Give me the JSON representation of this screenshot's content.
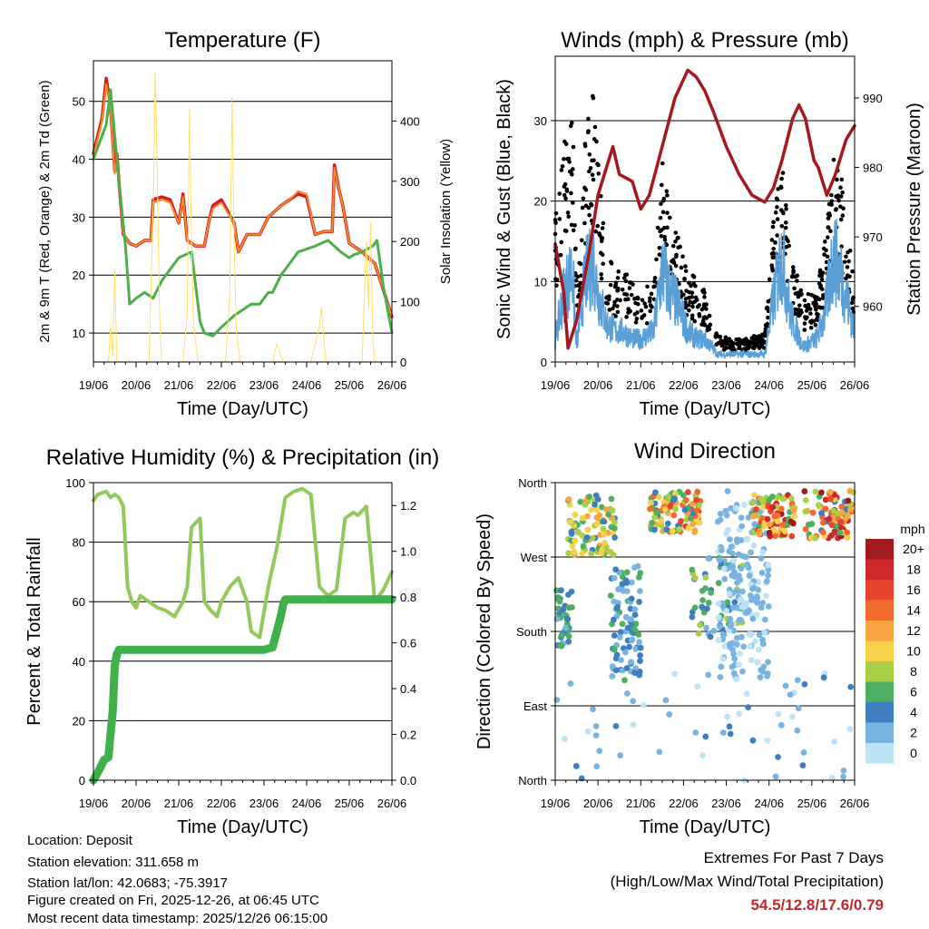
{
  "colors": {
    "temp_2m": "#d7191c",
    "temp_9m": "#f08c2b",
    "dewpoint": "#4daf4a",
    "insolation": "#ffe066",
    "gust": "#000000",
    "wind": "#5aa0d8",
    "pressure": "#a5191e",
    "humidity": "#92c95a",
    "precip": "#3fb04a",
    "grid": "#000000",
    "extremes_text": "#c0272d"
  },
  "chart_data": [
    {
      "id": "temperature",
      "type": "line",
      "title": "Temperature (F)",
      "xlabel": "Time (Day/UTC)",
      "ylabel": "2m & 9m T (Red, Orange) & 2m Td (Green)",
      "y2label": "Solar Insolation (Yellow)",
      "xticks": [
        "19/06",
        "20/06",
        "21/06",
        "22/06",
        "23/06",
        "24/06",
        "25/06",
        "26/06"
      ],
      "xlim": [
        0,
        7
      ],
      "ylim": [
        5,
        57
      ],
      "yticks": [
        10,
        20,
        30,
        40,
        50
      ],
      "y2lim": [
        0,
        500
      ],
      "y2ticks": [
        0,
        100,
        200,
        300,
        400
      ],
      "series": [
        {
          "name": "2m T",
          "axis": "left",
          "x": [
            0,
            0.2,
            0.3,
            0.4,
            0.5,
            0.55,
            0.6,
            0.7,
            0.85,
            1.0,
            1.2,
            1.35,
            1.4,
            1.6,
            1.8,
            2.0,
            2.1,
            2.2,
            2.4,
            2.6,
            2.7,
            2.8,
            3.0,
            3.3,
            3.4,
            3.6,
            3.9,
            4.1,
            4.25,
            4.4,
            4.6,
            4.8,
            5.0,
            5.2,
            5.4,
            5.6,
            5.65,
            5.75,
            5.85,
            6.0,
            6.3,
            6.6,
            7.0
          ],
          "y": [
            41,
            47,
            54,
            49,
            38,
            41,
            36,
            27,
            25.5,
            25,
            26,
            26,
            33,
            33.5,
            33,
            29,
            34,
            26,
            25,
            25,
            29,
            32,
            33,
            29,
            24,
            27,
            27,
            30,
            31,
            32,
            33,
            34,
            33.5,
            27,
            27.5,
            27.5,
            39,
            35,
            32,
            25.5,
            24,
            22,
            12.8
          ]
        },
        {
          "name": "9m T",
          "axis": "left",
          "x": [
            0,
            0.2,
            0.3,
            0.4,
            0.5,
            0.55,
            0.6,
            0.7,
            0.85,
            1.0,
            1.2,
            1.35,
            1.4,
            1.6,
            1.8,
            2.0,
            2.1,
            2.2,
            2.4,
            2.6,
            2.7,
            2.8,
            3.0,
            3.3,
            3.4,
            3.6,
            3.9,
            4.1,
            4.25,
            4.4,
            4.6,
            4.8,
            5.0,
            5.2,
            5.4,
            5.6,
            5.65,
            5.75,
            5.85,
            6.0,
            6.3,
            6.6,
            7.0
          ],
          "y": [
            40.5,
            46.5,
            53,
            48.5,
            37.5,
            40,
            35.5,
            27,
            25.5,
            25,
            26,
            26,
            32.5,
            33,
            32.5,
            29,
            33.5,
            26,
            25,
            25,
            29,
            31.5,
            32.5,
            29,
            24,
            27,
            27,
            30,
            31,
            32,
            33,
            34.5,
            34,
            27,
            27.5,
            27.5,
            38.5,
            35,
            32,
            25.5,
            24,
            22,
            12.8
          ]
        },
        {
          "name": "2m Td",
          "axis": "left",
          "x": [
            0,
            0.3,
            0.4,
            0.5,
            0.6,
            0.75,
            0.85,
            1.0,
            1.2,
            1.4,
            1.6,
            1.8,
            2.0,
            2.3,
            2.5,
            2.6,
            2.8,
            3.0,
            3.3,
            3.5,
            3.7,
            3.9,
            4.1,
            4.2,
            4.4,
            4.6,
            4.8,
            5.2,
            5.5,
            5.8,
            6.0,
            6.1,
            6.3,
            6.55,
            6.65,
            6.8,
            7.0
          ],
          "y": [
            40,
            46,
            52,
            44,
            36,
            25,
            15,
            16,
            17,
            16,
            19,
            21,
            23,
            24,
            12,
            10,
            9.5,
            11,
            13,
            14,
            15,
            15,
            17,
            17,
            20,
            22,
            24,
            25,
            26,
            24,
            23,
            23.5,
            24,
            25,
            26,
            18,
            10
          ]
        },
        {
          "name": "Solar Insolation",
          "axis": "right",
          "x": [
            0,
            0.35,
            0.4,
            0.45,
            0.5,
            0.55,
            1.3,
            1.4,
            1.45,
            1.5,
            1.55,
            1.6,
            1.7,
            2.1,
            2.2,
            2.25,
            2.3,
            2.35,
            2.45,
            3.1,
            3.2,
            3.25,
            3.3,
            3.35,
            3.45,
            4.2,
            4.3,
            4.35,
            4.45,
            5.1,
            5.3,
            5.35,
            5.4,
            5.45,
            6.3,
            6.4,
            6.45,
            6.5,
            6.55,
            6.6,
            7.0
          ],
          "y": [
            0,
            0,
            60,
            10,
            150,
            0,
            0,
            250,
            480,
            300,
            80,
            0,
            0,
            0,
            80,
            420,
            200,
            60,
            0,
            0,
            120,
            440,
            200,
            50,
            0,
            0,
            30,
            20,
            0,
            0,
            60,
            90,
            40,
            0,
            0,
            200,
            90,
            230,
            40,
            0,
            0
          ]
        }
      ]
    },
    {
      "id": "winds",
      "type": "line",
      "title": "Winds (mph) & Pressure (mb)",
      "xlabel": "Time (Day/UTC)",
      "ylabel": "Sonic Wind & Gust (Blue, Black)",
      "y2label": "Station Pressure (Maroon)",
      "xticks": [
        "19/06",
        "20/06",
        "21/06",
        "22/06",
        "23/06",
        "24/06",
        "25/06",
        "26/06"
      ],
      "xlim": [
        0,
        7
      ],
      "ylim": [
        0,
        38
      ],
      "yticks": [
        0,
        10,
        20,
        30
      ],
      "y2lim": [
        952,
        996
      ],
      "y2ticks": [
        960,
        970,
        980,
        990
      ],
      "series": [
        {
          "name": "Gust",
          "axis": "left",
          "x": [
            0,
            0.2,
            0.4,
            0.5,
            0.7,
            0.9,
            1.0,
            1.2,
            1.4,
            1.6,
            1.8,
            2.0,
            2.3,
            2.5,
            2.7,
            2.9,
            3.1,
            3.3,
            3.5,
            3.8,
            4.1,
            4.4,
            4.7,
            4.9,
            5.1,
            5.3,
            5.5,
            5.8,
            6.1,
            6.3,
            6.5,
            6.7,
            7.0
          ],
          "y": [
            16,
            24,
            30,
            8,
            26,
            30,
            22,
            12,
            10,
            10,
            9,
            8,
            9,
            22,
            17,
            13,
            10,
            9,
            8,
            3,
            2.5,
            2.5,
            3,
            3,
            16,
            22,
            12,
            7,
            8,
            13,
            22,
            20,
            8
          ]
        },
        {
          "name": "Wind",
          "axis": "left",
          "x": [
            0,
            0.2,
            0.4,
            0.5,
            0.7,
            0.9,
            1.0,
            1.2,
            1.4,
            1.6,
            1.8,
            2.0,
            2.3,
            2.5,
            2.7,
            2.9,
            3.1,
            3.3,
            3.5,
            3.8,
            4.1,
            4.4,
            4.7,
            4.9,
            5.1,
            5.3,
            5.5,
            5.8,
            6.1,
            6.3,
            6.5,
            6.7,
            7.0
          ],
          "y": [
            3,
            9,
            12,
            2,
            11,
            13,
            9,
            5,
            4,
            4,
            3,
            3,
            4,
            12,
            9,
            7,
            4,
            3,
            3,
            1,
            1,
            1,
            1,
            1,
            8,
            14,
            6,
            2,
            3,
            6,
            14,
            11,
            4
          ]
        },
        {
          "name": "Pressure",
          "axis": "right",
          "x": [
            0,
            0.2,
            0.3,
            0.5,
            0.8,
            1.0,
            1.25,
            1.35,
            1.5,
            1.8,
            2.0,
            2.2,
            2.5,
            2.8,
            3.1,
            3.3,
            3.5,
            3.7,
            4.0,
            4.3,
            4.6,
            4.9,
            5.1,
            5.3,
            5.55,
            5.7,
            5.85,
            6.05,
            6.15,
            6.35,
            6.55,
            6.8,
            7.0
          ],
          "y": [
            969,
            962,
            954,
            958,
            968,
            976,
            981,
            983,
            979,
            978,
            974,
            976,
            983,
            990,
            994,
            993,
            991,
            988,
            983,
            979,
            976,
            975,
            977,
            981,
            987,
            989,
            987,
            981,
            980,
            976,
            979,
            984,
            986
          ]
        }
      ]
    },
    {
      "id": "humidity",
      "type": "line",
      "title": "Relative Humidity (%) & Precipitation (in)",
      "xlabel": "Time (Day/UTC)",
      "ylabel": "Percent & Total Rainfall",
      "xticks": [
        "19/06",
        "20/06",
        "21/06",
        "22/06",
        "23/06",
        "24/06",
        "25/06",
        "26/06"
      ],
      "xlim": [
        0,
        7
      ],
      "ylim": [
        0,
        100
      ],
      "yticks": [
        0,
        20,
        40,
        60,
        80,
        100
      ],
      "y2lim": [
        0,
        1.3
      ],
      "y2ticks": [
        0.0,
        0.2,
        0.4,
        0.6,
        0.8,
        1.0,
        1.2
      ],
      "series": [
        {
          "name": "Relative Humidity",
          "axis": "left",
          "x": [
            0,
            0.1,
            0.3,
            0.4,
            0.5,
            0.6,
            0.7,
            0.8,
            0.9,
            1.0,
            1.1,
            1.3,
            1.5,
            1.7,
            1.9,
            2.1,
            2.2,
            2.3,
            2.5,
            2.6,
            2.75,
            2.9,
            3.0,
            3.2,
            3.4,
            3.6,
            3.7,
            3.9,
            4.1,
            4.3,
            4.5,
            4.7,
            4.9,
            5.1,
            5.3,
            5.5,
            5.7,
            5.9,
            6.1,
            6.2,
            6.4,
            6.6,
            6.8,
            7.0
          ],
          "y": [
            94,
            96,
            97,
            95,
            96,
            95,
            92,
            65,
            60,
            58,
            62,
            60,
            58,
            57,
            55,
            60,
            65,
            85,
            88,
            60,
            57,
            55,
            60,
            65,
            68,
            60,
            50,
            48,
            65,
            78,
            95,
            97,
            98,
            96,
            65,
            62,
            64,
            88,
            90,
            89,
            92,
            60,
            64,
            70
          ]
        },
        {
          "name": "Total Rainfall",
          "axis": "right",
          "x": [
            0,
            0.15,
            0.25,
            0.35,
            0.4,
            0.45,
            0.5,
            0.55,
            0.6,
            0.65,
            1.0,
            2.0,
            3.0,
            4.0,
            4.2,
            4.3,
            4.4,
            4.45,
            4.5,
            4.6,
            5.0,
            6.0,
            7.0
          ],
          "y": [
            0.0,
            0.05,
            0.09,
            0.1,
            0.2,
            0.3,
            0.5,
            0.55,
            0.57,
            0.57,
            0.57,
            0.57,
            0.57,
            0.57,
            0.58,
            0.65,
            0.72,
            0.77,
            0.79,
            0.79,
            0.79,
            0.79,
            0.79
          ]
        }
      ]
    },
    {
      "id": "direction",
      "type": "scatter",
      "title": "Wind Direction",
      "xlabel": "Time (Day/UTC)",
      "ylabel": "Direction (Colored By Speed)",
      "xticks": [
        "19/06",
        "20/06",
        "21/06",
        "22/06",
        "23/06",
        "24/06",
        "25/06",
        "26/06"
      ],
      "xlim": [
        0,
        7
      ],
      "ylim": [
        0,
        360
      ],
      "yticks": [
        0,
        90,
        180,
        270,
        360
      ],
      "ytick_labels": [
        "North",
        "East",
        "South",
        "West",
        "North"
      ],
      "colorbar_label": "mph",
      "colorbar_labels": [
        "20+",
        "18",
        "16",
        "14",
        "12",
        "10",
        "8",
        "6",
        "4",
        "2",
        "0"
      ],
      "colorbar_colors": [
        "#a11a1d",
        "#d0272c",
        "#e8432c",
        "#f26a2c",
        "#f9a440",
        "#f6d24b",
        "#a8cf45",
        "#4caf63",
        "#3d7fc0",
        "#79b4e1",
        "#bde3f7"
      ],
      "clusters": [
        {
          "x": [
            0.0,
            0.4
          ],
          "dir": [
            160,
            230
          ],
          "speed": [
            2,
            7
          ],
          "n": 40
        },
        {
          "x": [
            0.3,
            1.4
          ],
          "dir": [
            270,
            345
          ],
          "speed": [
            3,
            13
          ],
          "n": 90
        },
        {
          "x": [
            1.3,
            2.0
          ],
          "dir": [
            120,
            260
          ],
          "speed": [
            1,
            6
          ],
          "n": 90
        },
        {
          "x": [
            2.2,
            3.4
          ],
          "dir": [
            300,
            350
          ],
          "speed": [
            3,
            17
          ],
          "n": 100
        },
        {
          "x": [
            3.2,
            4.4
          ],
          "dir": [
            170,
            270
          ],
          "speed": [
            2,
            8
          ],
          "n": 60
        },
        {
          "x": [
            3.8,
            5.0
          ],
          "dir": [
            120,
            350
          ],
          "speed": [
            0,
            3
          ],
          "n": 180
        },
        {
          "x": [
            4.6,
            5.6
          ],
          "dir": [
            295,
            345
          ],
          "speed": [
            5,
            20
          ],
          "n": 90
        },
        {
          "x": [
            5.8,
            7.0
          ],
          "dir": [
            290,
            350
          ],
          "speed": [
            4,
            20
          ],
          "n": 90
        },
        {
          "x": [
            0.0,
            7.0
          ],
          "dir": [
            0,
            130
          ],
          "speed": [
            0,
            4
          ],
          "n": 60
        }
      ]
    }
  ],
  "footer": {
    "location": "Location: Deposit",
    "elevation": "Station elevation: 311.658 m",
    "latlon": "Station lat/lon: 42.0683; -75.3917",
    "created": "Figure created on Fri, 2025-12-26, at 06:45 UTC",
    "recent": "Most recent data timestamp: 2025/12/26 06:15:00"
  },
  "extremes": {
    "title": "Extremes For Past 7 Days",
    "subtitle": "(High/Low/Max Wind/Total Precipitation)",
    "value": "54.5/12.8/17.6/0.79"
  }
}
